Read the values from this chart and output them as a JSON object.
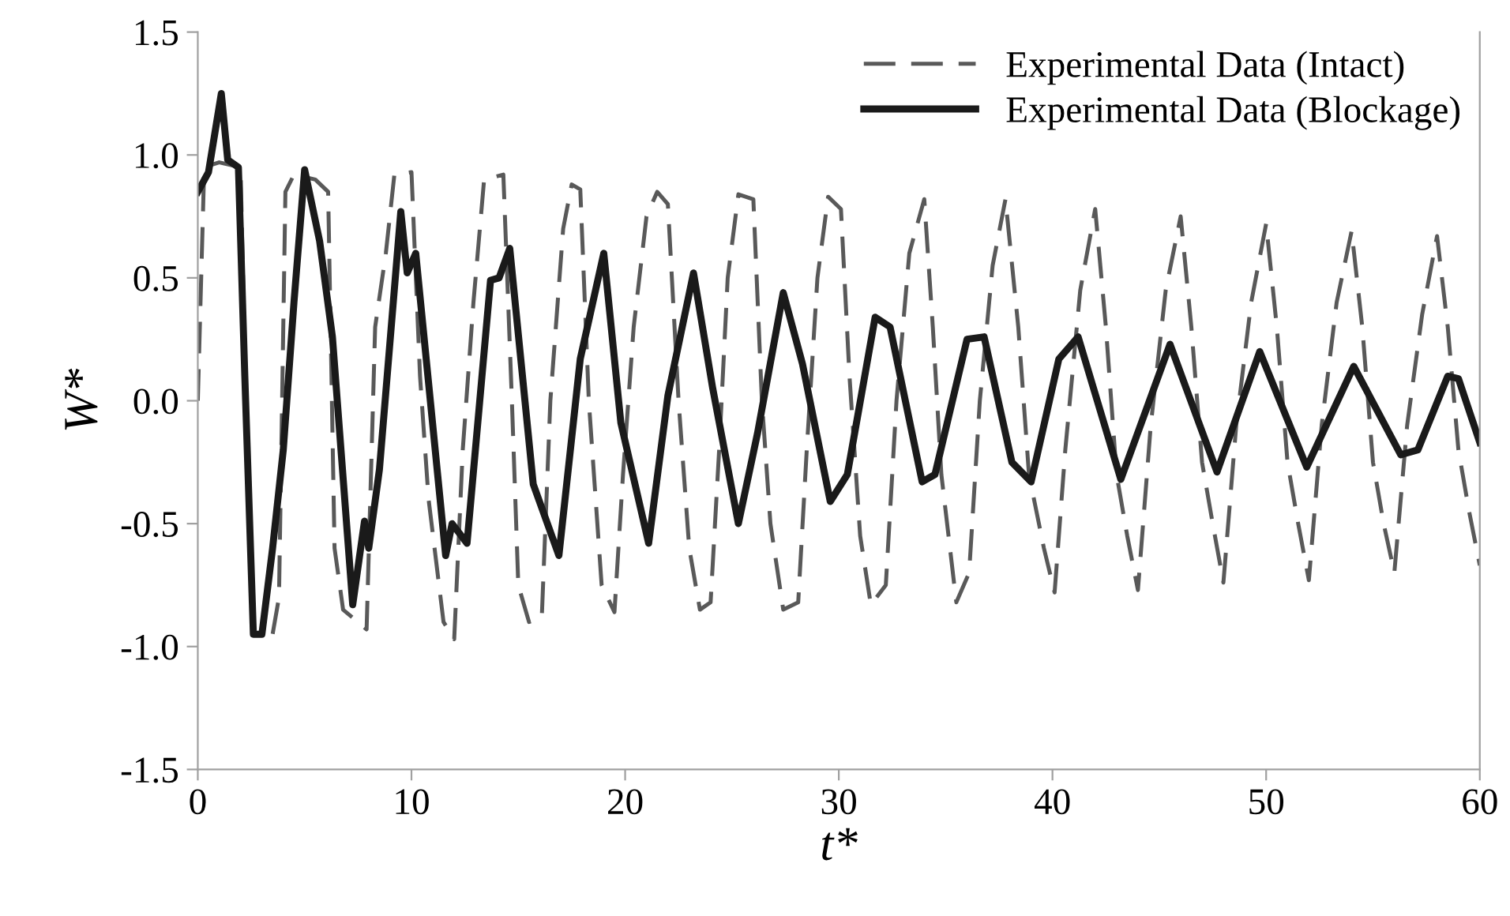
{
  "chart_data": {
    "type": "line",
    "xlabel": "t*",
    "ylabel": "W*",
    "xlim": [
      0,
      60
    ],
    "xticks": [
      0,
      10,
      20,
      30,
      40,
      50,
      60
    ],
    "ylim": [
      -1.5,
      1.5
    ],
    "yticks": [
      {
        "value": -1.5,
        "label": "-1.5"
      },
      {
        "value": -1.0,
        "label": "-1.0"
      },
      {
        "value": -0.5,
        "label": "-0.5"
      },
      {
        "value": 0,
        "label": "0.0"
      },
      {
        "value": 0.5,
        "label": "0.5"
      },
      {
        "value": 1.0,
        "label": "1.0"
      },
      {
        "value": 1.5,
        "label": "1.5"
      }
    ],
    "grid": false,
    "legend": "top right",
    "series": [
      {
        "name": "Experimental Data (Intact)",
        "color": "#595959",
        "line_style": "dashed",
        "x": [
          0,
          0.3,
          1.0,
          2.0,
          2.3,
          2.6,
          3.5,
          3.8,
          4.1,
          4.5,
          5.5,
          6.1,
          6.4,
          6.8,
          7.9,
          8.3,
          8.8,
          9.2,
          10.0,
          10.4,
          10.8,
          11.5,
          12.0,
          12.4,
          12.9,
          13.4,
          14.3,
          14.7,
          15.0,
          15.5,
          16.1,
          16.5,
          17.1,
          17.5,
          17.9,
          18.3,
          18.9,
          19.5,
          19.9,
          20.4,
          21.0,
          21.5,
          22.0,
          22.5,
          23.0,
          23.5,
          24.0,
          24.4,
          24.8,
          25.3,
          26.0,
          26.4,
          26.8,
          27.4,
          28.1,
          28.5,
          29.0,
          29.5,
          30.1,
          30.5,
          31.0,
          31.5,
          32.2,
          32.7,
          33.3,
          34.0,
          34.4,
          34.8,
          35.5,
          36.1,
          36.6,
          37.2,
          37.8,
          38.4,
          38.9,
          39.6,
          40.1,
          40.6,
          41.3,
          42.0,
          42.5,
          43.0,
          43.5,
          44.0,
          44.6,
          45.3,
          46.0,
          46.5,
          47.0,
          47.5,
          48.0,
          48.6,
          49.3,
          50.0,
          50.5,
          51.0,
          51.5,
          52.0,
          52.6,
          53.3,
          54.0,
          54.5,
          55.0,
          55.5,
          56.0,
          56.6,
          57.3,
          58.0,
          58.5,
          59.0,
          59.5,
          60.0
        ],
        "values": [
          0,
          0.95,
          0.97,
          0.95,
          -0.2,
          -0.95,
          -0.95,
          -0.8,
          0.85,
          0.92,
          0.9,
          0.85,
          -0.6,
          -0.85,
          -0.93,
          0.3,
          0.6,
          0.92,
          0.93,
          0.1,
          -0.4,
          -0.9,
          -0.97,
          -0.2,
          0.4,
          0.9,
          0.92,
          0.0,
          -0.75,
          -0.9,
          -0.88,
          0.0,
          0.7,
          0.88,
          0.86,
          0.0,
          -0.75,
          -0.86,
          -0.3,
          0.3,
          0.75,
          0.85,
          0.8,
          0.0,
          -0.6,
          -0.85,
          -0.82,
          -0.2,
          0.5,
          0.84,
          0.82,
          0.0,
          -0.5,
          -0.85,
          -0.82,
          -0.2,
          0.5,
          0.83,
          0.78,
          0.1,
          -0.55,
          -0.83,
          -0.75,
          0.0,
          0.6,
          0.82,
          0.3,
          -0.3,
          -0.82,
          -0.7,
          0.0,
          0.55,
          0.82,
          0.3,
          -0.3,
          -0.6,
          -0.78,
          -0.2,
          0.45,
          0.78,
          0.3,
          -0.3,
          -0.55,
          -0.77,
          -0.1,
          0.45,
          0.75,
          0.3,
          -0.25,
          -0.5,
          -0.74,
          -0.1,
          0.4,
          0.72,
          0.3,
          -0.25,
          -0.5,
          -0.73,
          -0.1,
          0.4,
          0.69,
          0.3,
          -0.25,
          -0.5,
          -0.7,
          -0.1,
          0.35,
          0.67,
          0.3,
          -0.2,
          -0.45,
          -0.67
        ]
      },
      {
        "name": "Experimental Data (Blockage)",
        "color": "#1a1a1a",
        "line_style": "solid",
        "x": [
          0,
          0.5,
          1.1,
          1.4,
          1.9,
          2.2,
          2.6,
          3.0,
          3.5,
          4.0,
          4.5,
          5.0,
          5.7,
          6.3,
          7.25,
          7.8,
          8.0,
          8.5,
          9.5,
          9.8,
          10.2,
          11.6,
          11.9,
          12.6,
          13.7,
          14.1,
          14.6,
          15.7,
          16.9,
          17.9,
          19.0,
          19.8,
          21.1,
          22.0,
          23.2,
          24.1,
          25.3,
          26.2,
          27.4,
          28.3,
          29.6,
          30.4,
          31.7,
          32.4,
          33.9,
          34.5,
          36.0,
          36.8,
          38.1,
          39.0,
          40.3,
          41.2,
          43.2,
          45.5,
          47.7,
          49.7,
          51.9,
          54.1,
          56.3,
          57.1,
          58.5,
          59.0,
          60
        ],
        "values": [
          0.85,
          0.93,
          1.25,
          0.98,
          0.95,
          0.1,
          -0.95,
          -0.95,
          -0.6,
          -0.2,
          0.4,
          0.94,
          0.65,
          0.26,
          -0.83,
          -0.49,
          -0.6,
          -0.28,
          0.77,
          0.52,
          0.6,
          -0.63,
          -0.5,
          -0.58,
          0.49,
          0.5,
          0.62,
          -0.34,
          -0.63,
          0.17,
          0.6,
          -0.09,
          -0.58,
          0.02,
          0.52,
          0.05,
          -0.5,
          -0.13,
          0.44,
          0.15,
          -0.41,
          -0.3,
          0.34,
          0.3,
          -0.33,
          -0.3,
          0.25,
          0.26,
          -0.25,
          -0.33,
          0.17,
          0.26,
          -0.32,
          0.23,
          -0.29,
          0.2,
          -0.27,
          0.14,
          -0.22,
          -0.2,
          0.1,
          0.09,
          -0.17
        ]
      }
    ]
  }
}
